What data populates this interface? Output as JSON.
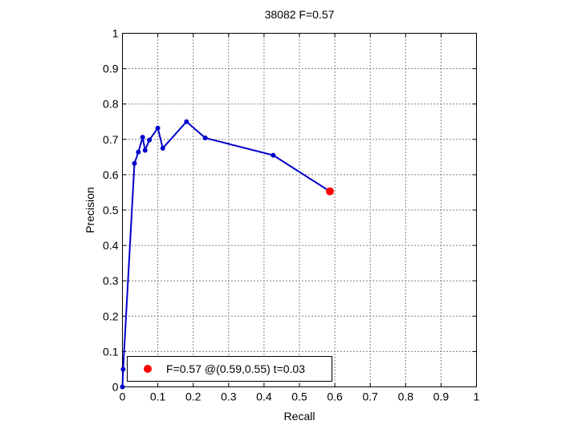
{
  "chart_data": {
    "type": "line",
    "title": "38082 F=0.57",
    "xlabel": "Recall",
    "ylabel": "Precision",
    "xlim": [
      0,
      1
    ],
    "ylim": [
      0,
      1
    ],
    "x_ticks": [
      "0",
      "0.1",
      "0.2",
      "0.3",
      "0.4",
      "0.5",
      "0.6",
      "0.7",
      "0.8",
      "0.9",
      "1"
    ],
    "y_ticks": [
      "0",
      "0.1",
      "0.2",
      "0.3",
      "0.4",
      "0.5",
      "0.6",
      "0.7",
      "0.8",
      "0.9",
      "1"
    ],
    "grid": true,
    "grid_style": "dotted",
    "legend_position": "bottom-left",
    "series": [
      {
        "color": "#0000cc",
        "marker": "dot",
        "x": [
          0.0,
          0.002,
          0.034,
          0.045,
          0.057,
          0.064,
          0.076,
          0.1,
          0.114,
          0.181,
          0.234,
          0.426,
          0.586
        ],
        "y": [
          0.0,
          0.05,
          0.632,
          0.664,
          0.706,
          0.669,
          0.698,
          0.732,
          0.675,
          0.75,
          0.704,
          0.655,
          0.553
        ]
      }
    ],
    "highlight_point": {
      "x": 0.586,
      "y": 0.553,
      "color": "#ff0000",
      "legend_label": "F=0.57 @(0.59,0.55) t=0.03"
    }
  }
}
